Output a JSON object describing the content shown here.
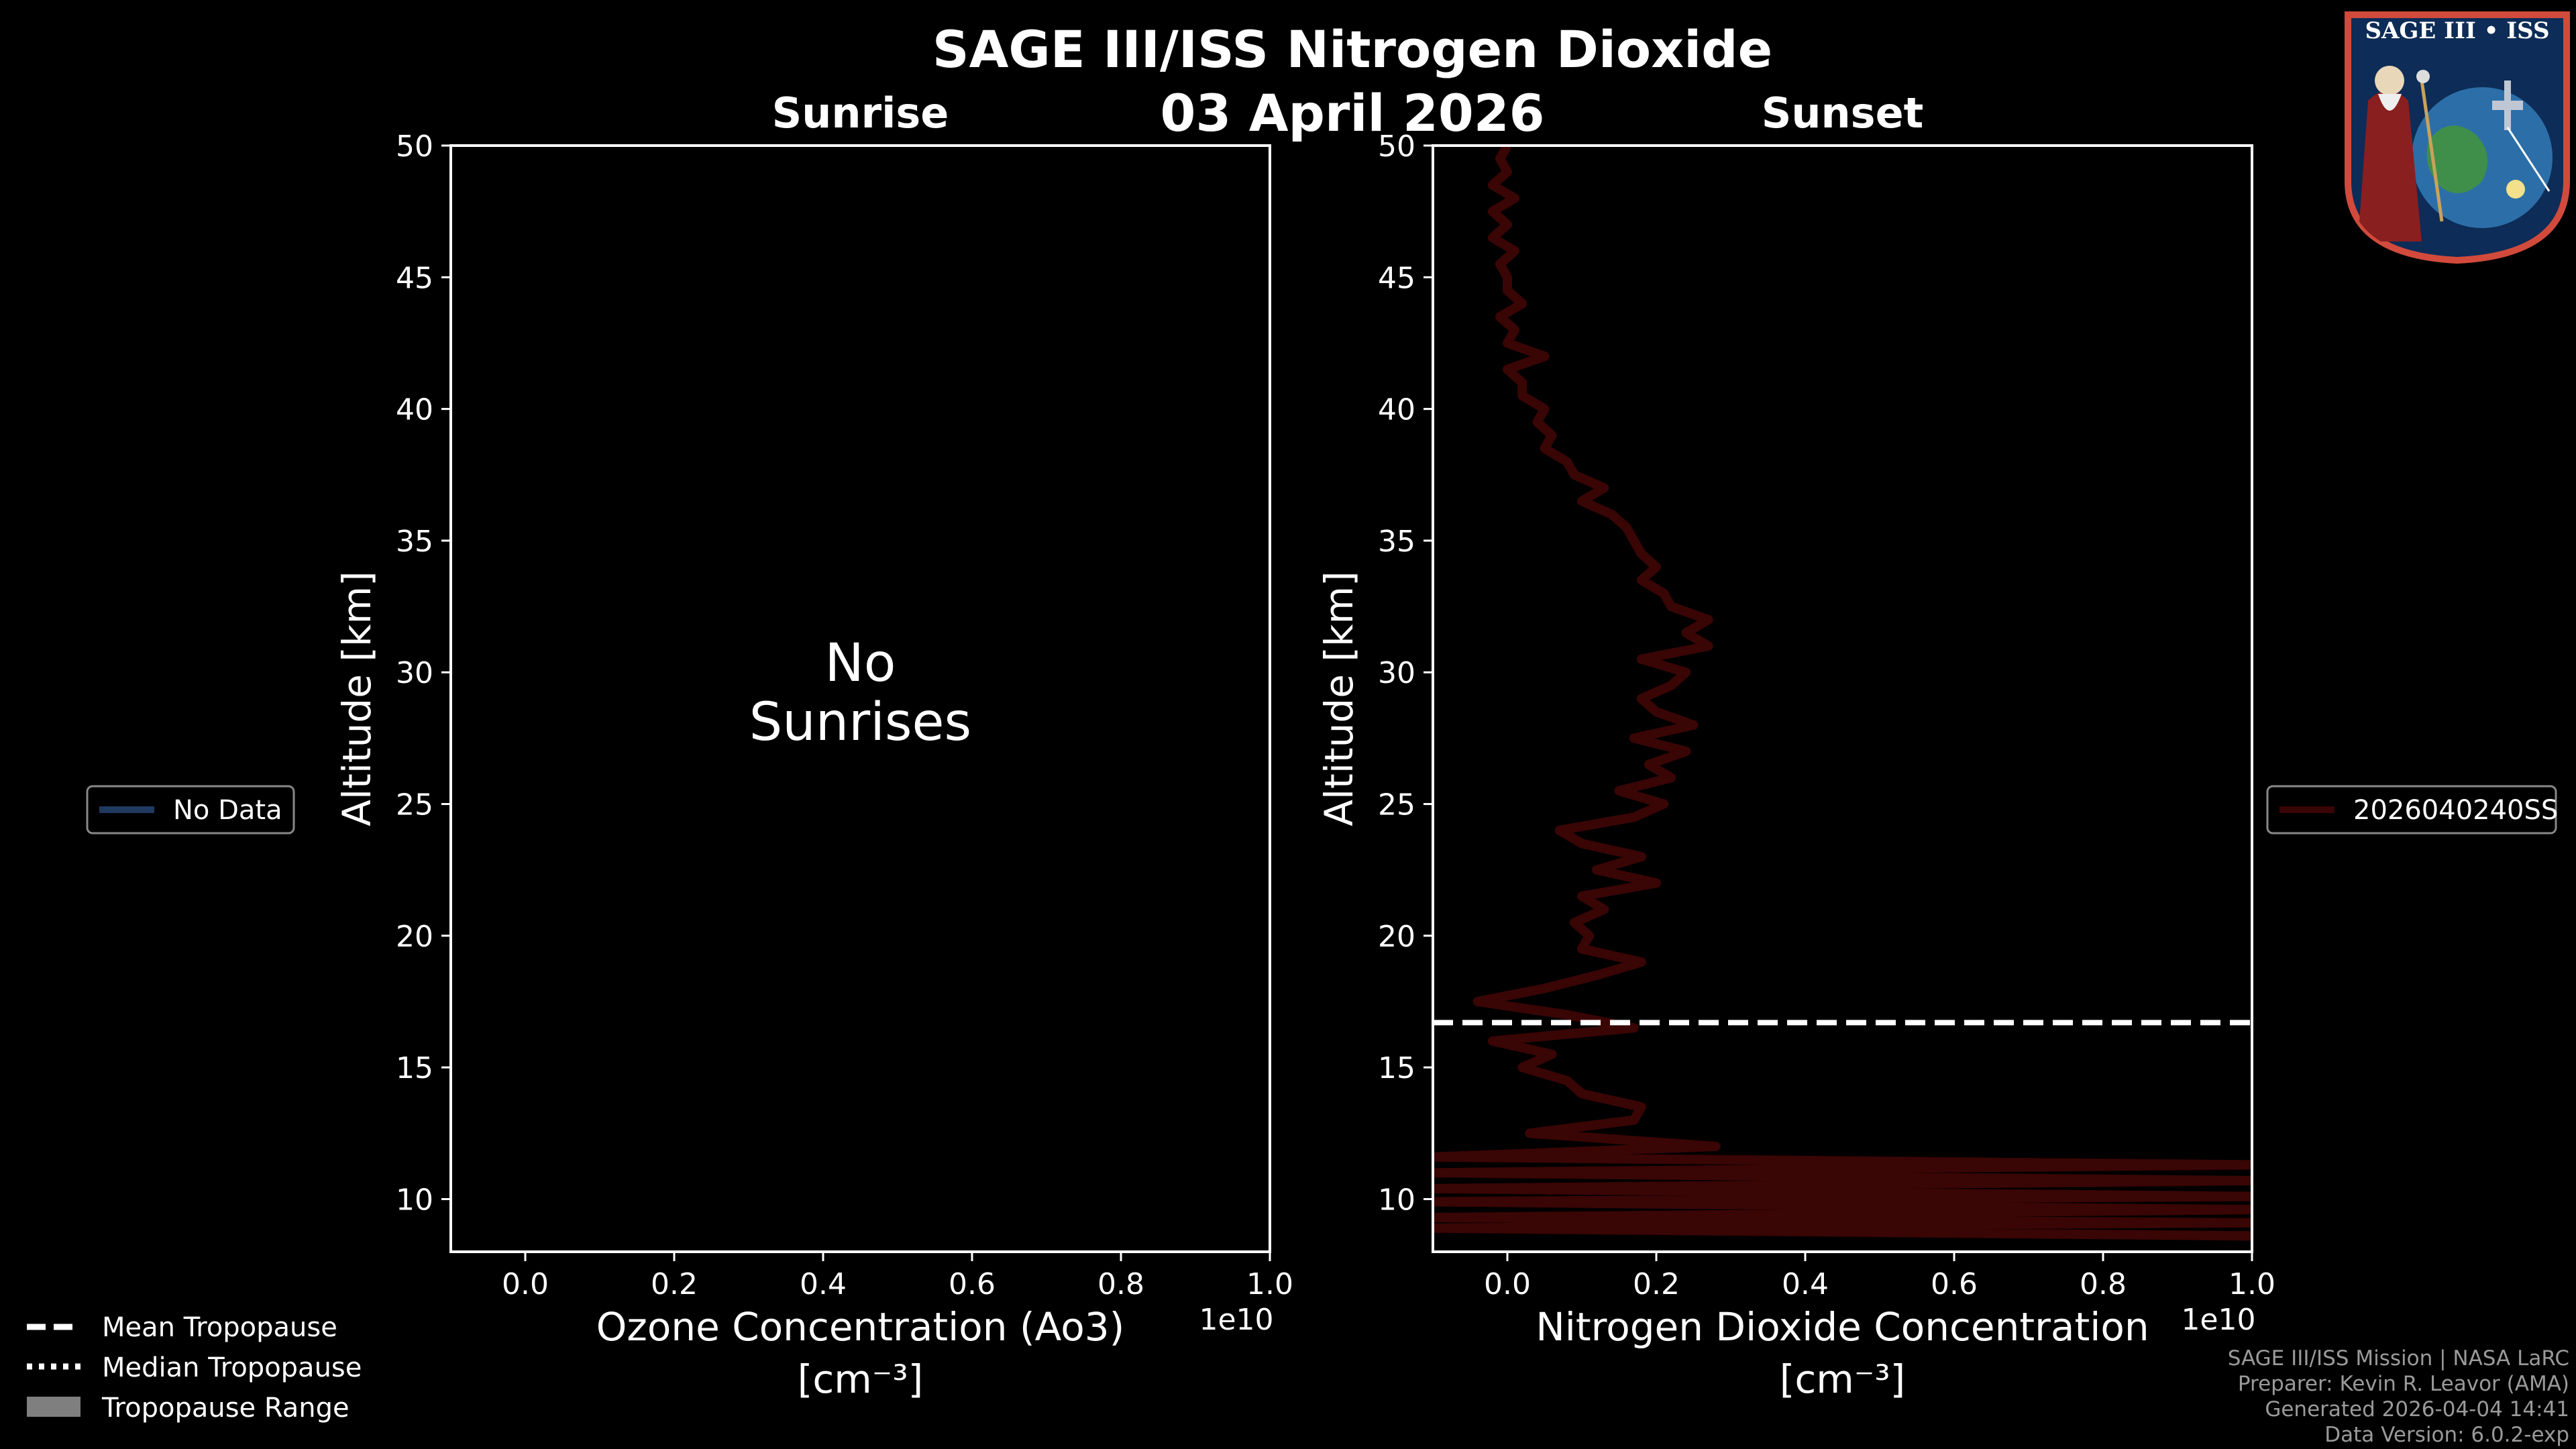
{
  "title": "SAGE III/ISS Nitrogen Dioxide",
  "date": "03 April 2026",
  "legend_left": {
    "items": [
      {
        "label": "Mean Tropopause",
        "style": "dashed"
      },
      {
        "label": "Median Tropopause",
        "style": "dotted"
      },
      {
        "label": "Tropopause Range",
        "style": "patch"
      }
    ]
  },
  "footer": {
    "lines": [
      "SAGE III/ISS Mission | NASA LaRC",
      "Preparer: Kevin R. Leavor (AMA)",
      "Generated 2026-04-04 14:41",
      "Data Version: 6.0.2-exp"
    ]
  },
  "logo": {
    "title": "SAGE III • ISS",
    "icon": "mission-patch-icon"
  },
  "colors": {
    "background": "#000000",
    "no_data_line": "#1f3a5f",
    "sunset_line": "#3a0505",
    "tropopause": "#ffffff"
  },
  "chart_data": [
    {
      "type": "line",
      "panel": "sunrise",
      "title": "Sunrise",
      "xlabel": "Ozone Concentration (Ao3)",
      "xunit": "[cm⁻³]",
      "ylabel": "Altitude [km]",
      "x_offset_label": "1e10",
      "xlim": [
        -0.1,
        1.0
      ],
      "ylim": [
        8,
        50
      ],
      "xticks": [
        "0.0",
        "0.2",
        "0.4",
        "0.6",
        "0.8",
        "1.0"
      ],
      "yticks": [
        "10",
        "15",
        "20",
        "25",
        "30",
        "35",
        "40",
        "45",
        "50"
      ],
      "annotation": [
        "No",
        "Sunrises"
      ],
      "legend": {
        "placement": "left",
        "entries": [
          "No Data"
        ]
      },
      "series": []
    },
    {
      "type": "line",
      "panel": "sunset",
      "title": "Sunset",
      "xlabel": "Nitrogen Dioxide Concentration",
      "xunit": "[cm⁻³]",
      "ylabel": "Altitude [km]",
      "x_offset_label": "1e10",
      "xlim": [
        -0.1,
        1.0
      ],
      "ylim": [
        8,
        50
      ],
      "xticks": [
        "0.0",
        "0.2",
        "0.4",
        "0.6",
        "0.8",
        "1.0"
      ],
      "yticks": [
        "10",
        "15",
        "20",
        "25",
        "30",
        "35",
        "40",
        "45",
        "50"
      ],
      "legend": {
        "placement": "right",
        "entries": [
          "2026040240SS"
        ]
      },
      "mean_tropopause_km": 16.7,
      "series": [
        {
          "name": "2026040240SS",
          "y": [
            8.6,
            8.9,
            9.1,
            9.3,
            9.6,
            9.9,
            10.1,
            10.4,
            10.7,
            11.0,
            11.3,
            11.6,
            12.0,
            12.5,
            13.0,
            13.5,
            14.0,
            14.5,
            15.0,
            15.5,
            16.0,
            16.5,
            17.0,
            17.5,
            18.0,
            18.5,
            19.0,
            19.5,
            20.0,
            20.5,
            21.0,
            21.5,
            22.0,
            22.5,
            23.0,
            23.5,
            24.0,
            24.5,
            25.0,
            25.5,
            26.0,
            26.5,
            27.0,
            27.5,
            28.0,
            28.5,
            29.0,
            29.5,
            30.0,
            30.5,
            31.0,
            31.5,
            32.0,
            32.5,
            33.0,
            33.5,
            34.0,
            34.5,
            35.0,
            35.5,
            36.0,
            36.5,
            37.0,
            37.5,
            38.0,
            38.5,
            39.0,
            39.5,
            40.0,
            40.5,
            41.0,
            41.5,
            42.0,
            42.5,
            43.0,
            43.5,
            44.0,
            44.5,
            45.0,
            45.5,
            46.0,
            46.5,
            47.0,
            47.5,
            48.0,
            48.5,
            49.0,
            49.5,
            50.0
          ],
          "x": [
            1.0,
            -0.1,
            1.0,
            -0.1,
            1.0,
            -0.1,
            1.0,
            -0.1,
            1.0,
            -0.1,
            1.0,
            -0.1,
            0.28,
            0.03,
            0.17,
            0.18,
            0.1,
            0.08,
            0.02,
            0.06,
            -0.02,
            0.17,
            0.08,
            -0.04,
            0.05,
            0.12,
            0.18,
            0.1,
            0.11,
            0.09,
            0.13,
            0.1,
            0.2,
            0.12,
            0.18,
            0.1,
            0.07,
            0.17,
            0.21,
            0.15,
            0.22,
            0.19,
            0.24,
            0.17,
            0.25,
            0.2,
            0.18,
            0.22,
            0.24,
            0.18,
            0.27,
            0.24,
            0.27,
            0.22,
            0.21,
            0.18,
            0.2,
            0.18,
            0.17,
            0.16,
            0.14,
            0.1,
            0.13,
            0.09,
            0.08,
            0.05,
            0.06,
            0.04,
            0.05,
            0.02,
            0.02,
            0.0,
            0.05,
            0.0,
            0.01,
            -0.01,
            0.02,
            0.0,
            0.0,
            -0.01,
            0.01,
            -0.02,
            0.0,
            -0.02,
            0.01,
            -0.02,
            0.0,
            -0.01,
            0.0
          ]
        }
      ]
    }
  ]
}
